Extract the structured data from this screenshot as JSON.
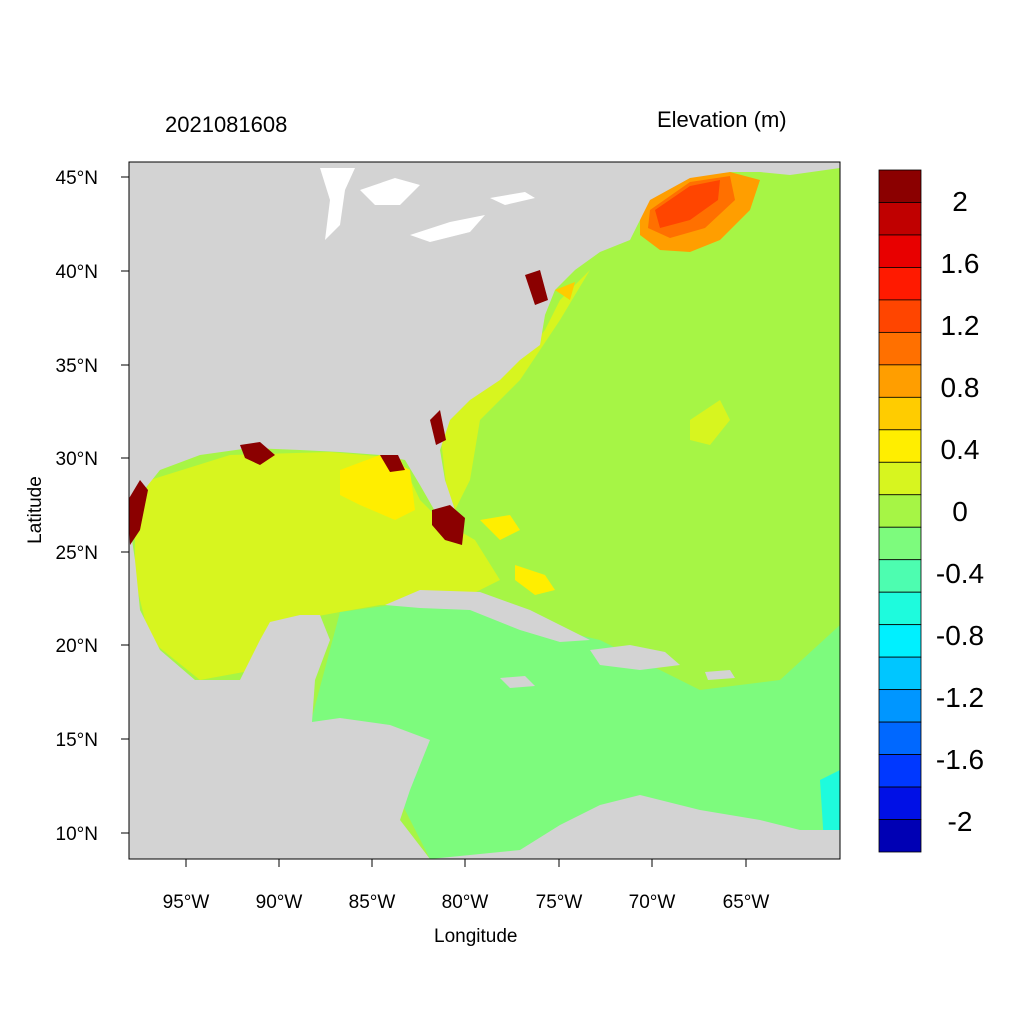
{
  "title": {
    "timestamp": "2021081608",
    "variable": "Elevation (m)"
  },
  "axes": {
    "xlabel": "Longitude",
    "ylabel": "Latitude",
    "x_ticks": [
      "95°W",
      "90°W",
      "85°W",
      "80°W",
      "75°W",
      "70°W",
      "65°W"
    ],
    "y_ticks": [
      "45°N",
      "40°N",
      "35°N",
      "30°N",
      "25°N",
      "20°N",
      "15°N",
      "10°N"
    ]
  },
  "colorbar": {
    "labels": [
      "2",
      "1.6",
      "1.2",
      "0.8",
      "0.4",
      "0",
      "-0.4",
      "-0.8",
      "-1.2",
      "-1.6",
      "-2"
    ],
    "colors": [
      "#8b0000",
      "#c00000",
      "#e80000",
      "#ff1a00",
      "#ff4500",
      "#ff7000",
      "#ff9e00",
      "#ffcc00",
      "#ffee00",
      "#d7f51f",
      "#a6f545",
      "#7dfb7d",
      "#4dfdb0",
      "#1efbdd",
      "#00f0ff",
      "#00c6ff",
      "#0096ff",
      "#0068ff",
      "#0038ff",
      "#0010e6",
      "#0000b4"
    ]
  },
  "colors": {
    "land": "#d3d3d3",
    "ocean_bg": "#a6f545",
    "gulf": "#d7f51f",
    "caribbean": "#7dfb7d",
    "surge_high": "#8b0000"
  }
}
